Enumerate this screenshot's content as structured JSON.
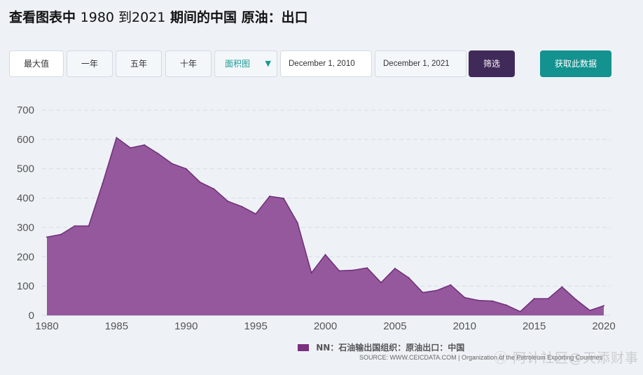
{
  "header": {
    "title_prefix": "查看图表中",
    "title_range": "1980 到2021",
    "title_suffix": "期间的中国 原油：出口"
  },
  "toolbar": {
    "range_buttons": [
      "最大值",
      "一年",
      "五年",
      "十年"
    ],
    "chart_type_selected": "面积图",
    "start_date": "December 1, 2010",
    "end_date": "December 1, 2021",
    "filter_label": "筛选",
    "get_data_label": "获取此数据"
  },
  "colors": {
    "area_fill": "#95589c",
    "area_stroke": "#6f2e7a",
    "legend_swatch": "#7b2f7f",
    "filter_button": "#402a5a",
    "get_data_button": "#13928f"
  },
  "chart_data": {
    "type": "area",
    "title": "",
    "xlabel": "",
    "ylabel": "",
    "xlim": [
      1980,
      2020
    ],
    "ylim": [
      0,
      700
    ],
    "yticks": [
      0,
      100,
      200,
      300,
      400,
      500,
      600,
      700
    ],
    "xticks": [
      1980,
      1985,
      1990,
      1995,
      2000,
      2005,
      2010,
      2015,
      2020
    ],
    "grid": "horizontal dashed",
    "legend_position": "bottom-center",
    "series": [
      {
        "name": "NN：石油输出国组织：原油出口：中国",
        "x": [
          1980,
          1981,
          1982,
          1983,
          1984,
          1985,
          1986,
          1987,
          1988,
          1989,
          1990,
          1991,
          1992,
          1993,
          1994,
          1995,
          1996,
          1997,
          1998,
          1999,
          2000,
          2001,
          2002,
          2003,
          2004,
          2005,
          2006,
          2007,
          2008,
          2009,
          2010,
          2011,
          2012,
          2013,
          2014,
          2015,
          2016,
          2017,
          2018,
          2019,
          2020
        ],
        "values": [
          267,
          276,
          305,
          305,
          450,
          606,
          571,
          581,
          551,
          517,
          500,
          454,
          431,
          389,
          371,
          346,
          406,
          399,
          316,
          145,
          207,
          152,
          154,
          162,
          112,
          160,
          128,
          78,
          85,
          104,
          61,
          51,
          49,
          35,
          13,
          57,
          57,
          97,
          54,
          17,
          33
        ]
      }
    ]
  },
  "footer": {
    "source": "SOURCE: WWW.CEICDATA.COM | Organization of the Petroleum Exporting Countries",
    "watermark": "Ⓐ 阿计社区@天添财事"
  }
}
